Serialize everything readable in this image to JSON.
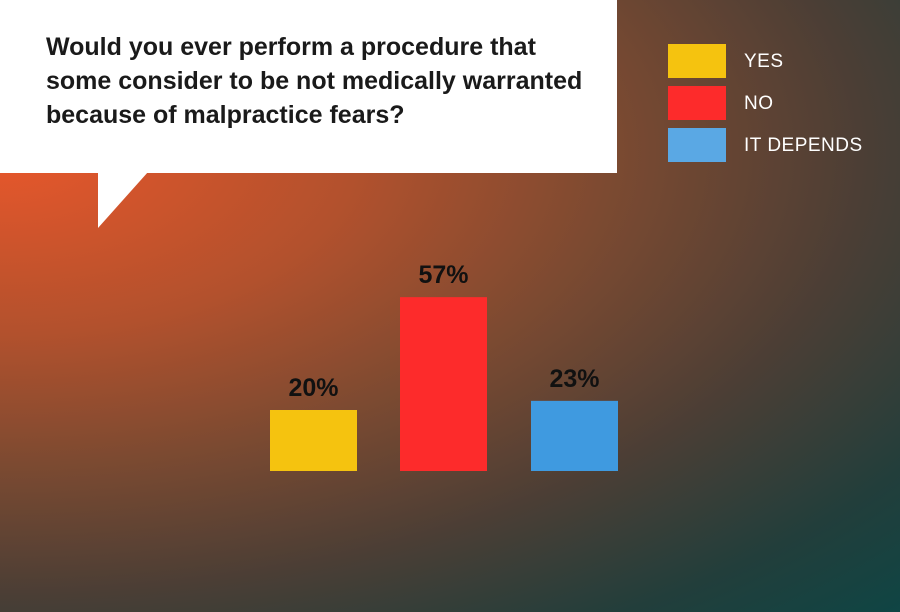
{
  "question": "Would you ever perform a procedure that some consider to be not medically warranted because of malpractice fears?",
  "legend": [
    {
      "label": "YES",
      "color": "#f5c30f"
    },
    {
      "label": "NO",
      "color": "#fd2b2b"
    },
    {
      "label": "IT DEPENDS",
      "color": "#5aa8e4"
    }
  ],
  "chart_data": {
    "type": "bar",
    "title": "Would you ever perform a procedure that some consider to be not medically warranted because of malpractice fears?",
    "categories": [
      "YES",
      "NO",
      "IT DEPENDS"
    ],
    "values": [
      20,
      57,
      23
    ],
    "value_labels": [
      "20%",
      "57%",
      "23%"
    ],
    "colors": [
      "#f5c30f",
      "#fd2b2b",
      "#3f9ae0"
    ],
    "xlabel": "",
    "ylabel": "",
    "grid": false,
    "legend_position": "top-right"
  }
}
